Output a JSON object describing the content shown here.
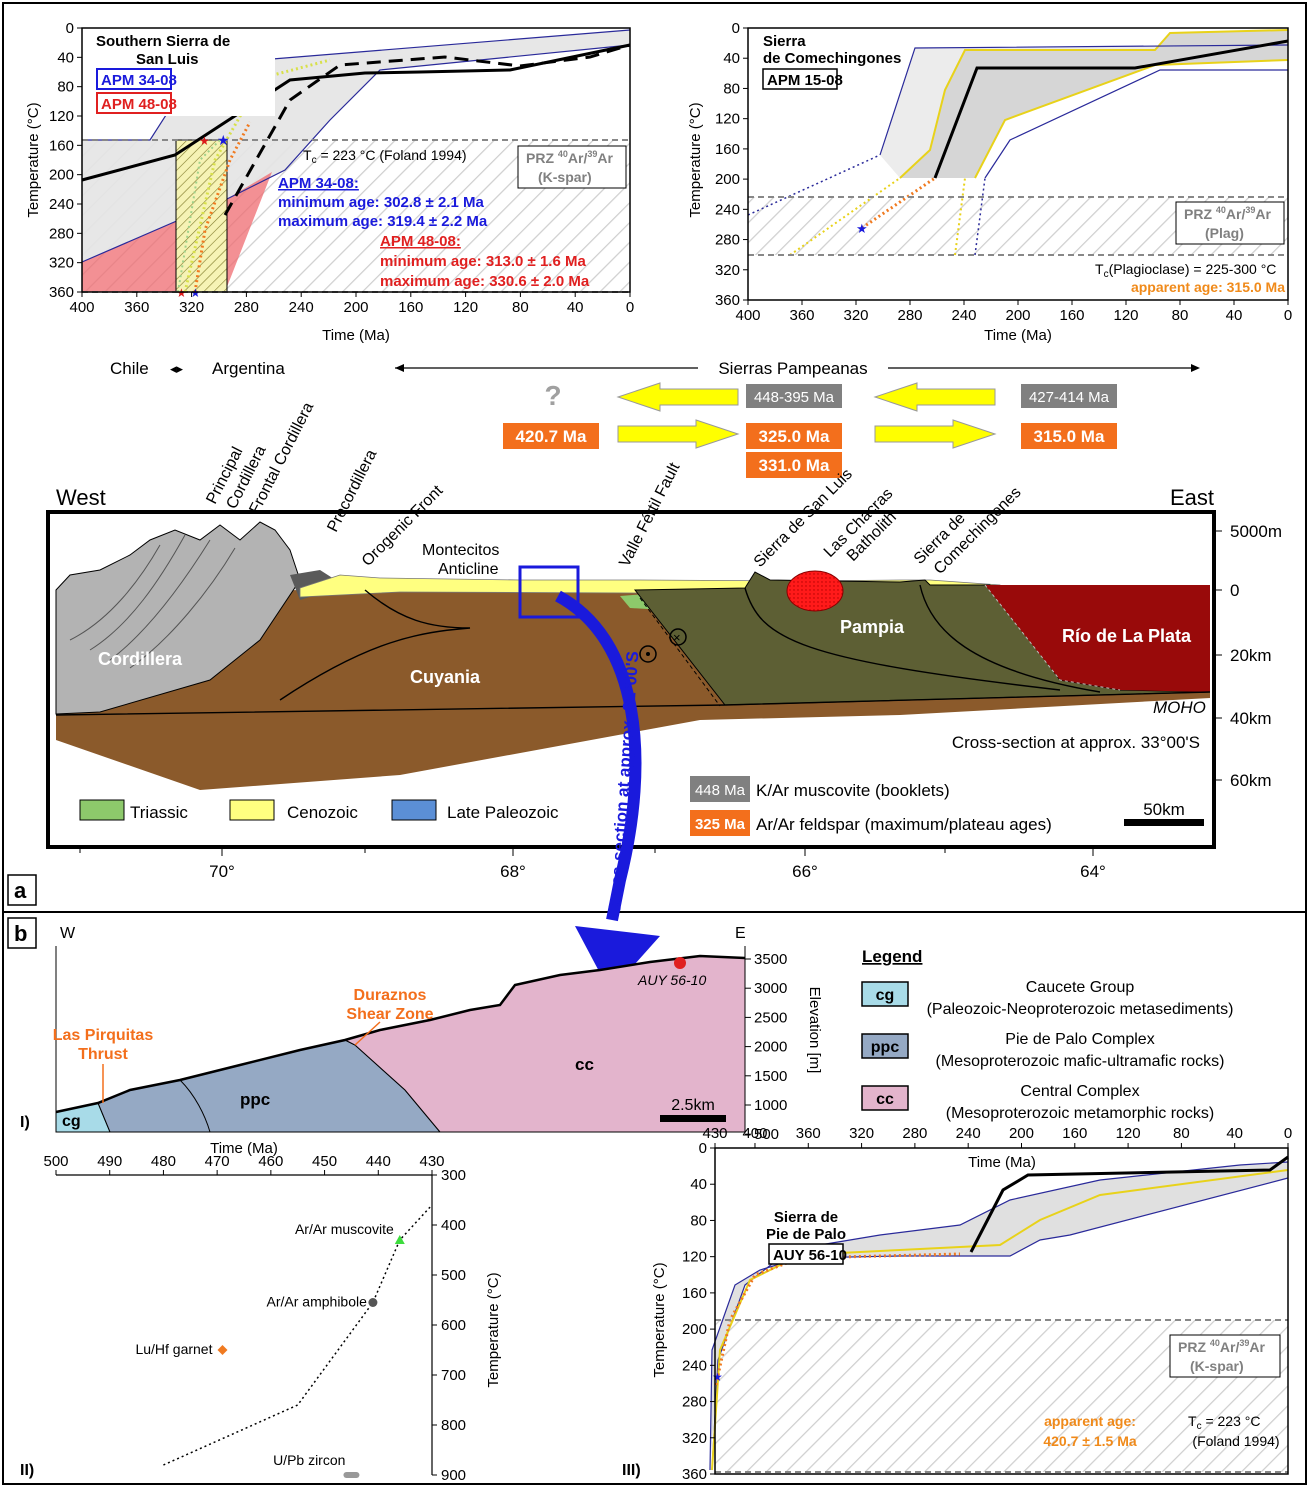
{
  "panel_a": {
    "label": "a",
    "chart_left": {
      "title_lines": [
        "Southern Sierra de",
        "San Luis"
      ],
      "sample1": "APM 34-08",
      "sample2": "APM 48-08",
      "tc_text": "T",
      "tc_sub": "c",
      "tc_rest": " = 223 °C (Foland 1994)",
      "prz_line1_a": "PRZ ",
      "prz_line1_sup1": "40",
      "prz_line1_b": "Ar/",
      "prz_line1_sup2": "39",
      "prz_line1_c": "Ar",
      "prz_line2": "(K-spar)",
      "s1_head": "APM 34-08:",
      "s1_min": "minimum age: 302.8 ± 2.1 Ma",
      "s1_max": "maximum age: 319.4 ± 2.2 Ma",
      "s2_head": "APM 48-08:",
      "s2_min": "minimum age: 313.0 ± 1.6 Ma",
      "s2_max": "maximum age: 330.6 ± 2.0 Ma",
      "xlabel": "Time (Ma)",
      "ylabel": "Temperature (°C)",
      "xticks": [
        "400",
        "360",
        "320",
        "280",
        "240",
        "200",
        "160",
        "120",
        "80",
        "40",
        "0"
      ],
      "yticks": [
        "0",
        "40",
        "80",
        "120",
        "160",
        "200",
        "240",
        "280",
        "320",
        "360"
      ]
    },
    "chart_right": {
      "title_lines": [
        "Sierra",
        "de Comechingones"
      ],
      "sample": "APM 15-08",
      "prz_line2": "(Plag)",
      "tc_main": "T",
      "tc_sub": "c",
      "tc_rest": "(Plagioclase) = 225-300 °C",
      "apparent": "apparent age: 315.0 Ma",
      "xlabel": "Time (Ma)",
      "ylabel": "Temperature (°C)",
      "xticks": [
        "400",
        "360",
        "320",
        "280",
        "240",
        "200",
        "160",
        "120",
        "80",
        "40",
        "0"
      ],
      "yticks": [
        "0",
        "40",
        "80",
        "120",
        "160",
        "200",
        "240",
        "280",
        "320",
        "360"
      ]
    },
    "chile": "Chile",
    "argentina": "Argentina",
    "sierras_pampeanas": "Sierras Pampeanas",
    "question": "?",
    "ages_gray": [
      "448-395 Ma",
      "427-414 Ma"
    ],
    "ages_orange": [
      "420.7 Ma",
      "325.0 Ma",
      "331.0 Ma",
      "315.0 Ma"
    ],
    "west": "West",
    "east": "East",
    "labels_diag": [
      "Principal",
      "Cordillera",
      "Frontal Cordillera",
      "Precordillera",
      "Orogenic Front",
      "Valle Fértil Fault",
      "Sierra de San Luis",
      "Las Chacras",
      "Batholith",
      "Sierra de",
      "Comechingones"
    ],
    "montecitos": [
      "Montecitos",
      "Anticline"
    ],
    "terranes": [
      "Cordillera",
      "Cuyania",
      "Pampia",
      "Río de La Plata"
    ],
    "moho": "MOHO",
    "cross_section": "Cross-section at approx. 33°00'S",
    "curved_label": "Cross-section at approx. 31°00'S",
    "depth_labels": [
      "5000m",
      "0",
      "20km",
      "40km",
      "60km"
    ],
    "legend": [
      "Triassic",
      "Cenozoic",
      "Late Paleozoic"
    ],
    "legend_age_gray": "448 Ma",
    "legend_age_gray_text": "K/Ar muscovite (booklets)",
    "legend_age_orange": "325 Ma",
    "legend_age_orange_text": "Ar/Ar feldspar (maximum/plateau ages)",
    "scale": "50km",
    "longitudes": [
      "70°",
      "68°",
      "66°",
      "64°"
    ]
  },
  "panel_b": {
    "label": "b",
    "w": "W",
    "e": "E",
    "roman1": "I)",
    "roman2": "II)",
    "roman3": "III)",
    "las_pirquitas": [
      "Las Pirquitas",
      "Thrust"
    ],
    "duraznos": [
      "Duraznos",
      "Shear Zone"
    ],
    "unit_labels": [
      "cg",
      "ppc",
      "cc"
    ],
    "sample": "AUY 56-10",
    "scale": "2.5km",
    "elev_label": "Elevation [m]",
    "elev_ticks": [
      "3500",
      "3000",
      "2500",
      "2000",
      "1500",
      "1000",
      "500"
    ],
    "legend_title": "Legend",
    "legend_items": [
      {
        "code": "cg",
        "line1": "Caucete Group",
        "line2": "(Paleozoic-Neoproterozoic metasediments)",
        "color": "#a8dbe8"
      },
      {
        "code": "ppc",
        "line1": "Pie de Palo Complex",
        "line2": "(Mesoproterozoic mafic-ultramafic rocks)",
        "color": "#95a9c4"
      },
      {
        "code": "cc",
        "line1": "Central Complex",
        "line2": "(Mesoproterozoic metamorphic rocks)",
        "color": "#e3b4cc"
      }
    ],
    "chart_ii": {
      "xlabel": "Time (Ma)",
      "ylabel": "Temperature (°C)",
      "xticks": [
        "500",
        "490",
        "480",
        "470",
        "460",
        "450",
        "440",
        "430"
      ],
      "yticks": [
        "300",
        "400",
        "500",
        "600",
        "700",
        "800",
        "900"
      ],
      "points": [
        "Ar/Ar muscovite",
        "Ar/Ar amphibole",
        "Lu/Hf garnet",
        "U/Pb zircon"
      ]
    },
    "chart_iii": {
      "title_lines": [
        "Sierra de",
        "Pie de Palo"
      ],
      "sample": "AUY 56-10",
      "xlabel": "Time (Ma)",
      "ylabel": "Temperature (°C)",
      "xticks": [
        "430",
        "400",
        "360",
        "320",
        "280",
        "240",
        "200",
        "160",
        "120",
        "80",
        "40",
        "0"
      ],
      "yticks": [
        "0",
        "40",
        "80",
        "120",
        "160",
        "200",
        "240",
        "280",
        "320",
        "360"
      ],
      "prz_line2": "(K-spar)",
      "apparent1": "apparent age:",
      "apparent2": "420.7 ± 1.5 Ma",
      "tc_main": "T",
      "tc_sub": "c",
      "tc_rest": " = 223 °C",
      "foland": "(Foland 1994)"
    }
  },
  "chart_data": [
    {
      "type": "line",
      "title": "Southern Sierra de San Luis",
      "xlabel": "Time (Ma)",
      "ylabel": "Temperature (°C)",
      "xlim": [
        400,
        0
      ],
      "ylim": [
        360,
        0
      ],
      "series": [
        {
          "name": "APM 34-08",
          "x": [
            400,
            335,
            255,
            200,
            140,
            80,
            40,
            0
          ],
          "y": [
            202,
            170,
            75,
            63,
            60,
            55,
            45,
            25
          ]
        },
        {
          "name": "APM 48-08",
          "x": [
            300,
            260,
            230,
            140,
            90,
            40,
            0
          ],
          "y": [
            250,
            110,
            55,
            40,
            52,
            40,
            25
          ]
        }
      ]
    },
    {
      "type": "line",
      "title": "Sierra de Comechingones",
      "xlabel": "Time (Ma)",
      "ylabel": "Temperature (°C)",
      "xlim": [
        400,
        0
      ],
      "ylim": [
        360,
        0
      ],
      "series": [
        {
          "name": "APM 15-08",
          "x": [
            263,
            215,
            135,
            0
          ],
          "y": [
            200,
            58,
            58,
            23
          ]
        }
      ]
    },
    {
      "type": "scatter",
      "xlabel": "Time (Ma)",
      "ylabel": "Temperature (°C)",
      "xlim": [
        500,
        430
      ],
      "ylim": [
        900,
        300
      ],
      "series": [
        {
          "name": "Ar/Ar muscovite",
          "x": [
            436
          ],
          "y": [
            430
          ]
        },
        {
          "name": "Ar/Ar amphibole",
          "x": [
            441
          ],
          "y": [
            555
          ]
        },
        {
          "name": "Lu/Hf garnet",
          "x": [
            469
          ],
          "y": [
            650
          ]
        },
        {
          "name": "U/Pb zircon",
          "x": [
            445
          ],
          "y": [
            900
          ]
        }
      ]
    },
    {
      "type": "line",
      "title": "Sierra de Pie de Palo",
      "xlabel": "Time (Ma)",
      "ylabel": "Temperature (°C)",
      "xlim": [
        430,
        0
      ],
      "ylim": [
        360,
        0
      ],
      "series": [
        {
          "name": "AUY 56-10",
          "x": [
            232,
            210,
            185,
            10,
            0
          ],
          "y": [
            138,
            75,
            65,
            40,
            25
          ]
        }
      ]
    }
  ]
}
